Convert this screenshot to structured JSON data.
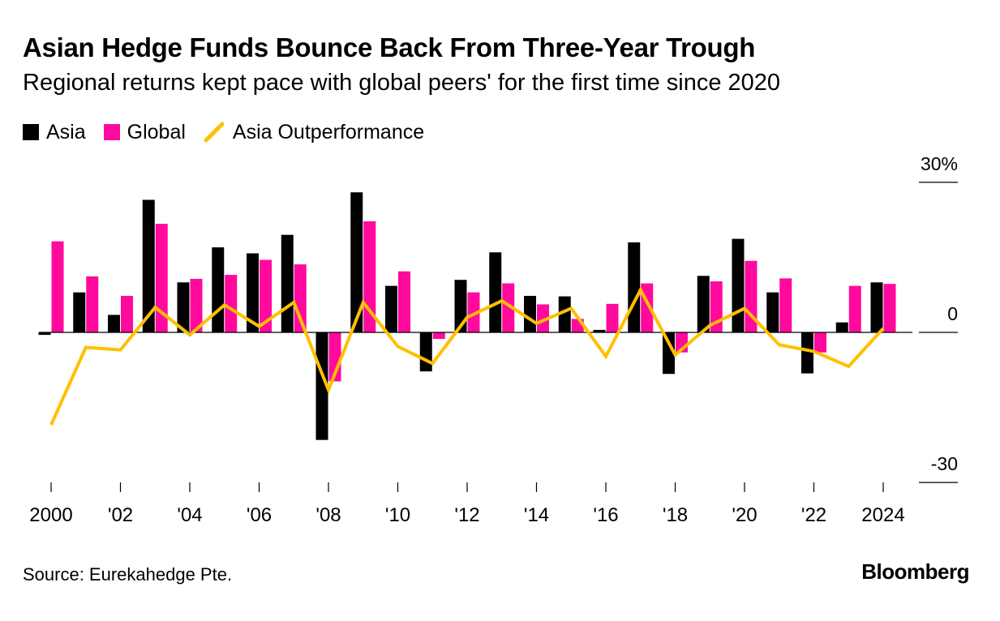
{
  "title": "Asian Hedge Funds Bounce Back From Three-Year Trough",
  "subtitle": "Regional returns kept pace with global peers' for the first time since 2020",
  "legend": {
    "asia": "Asia",
    "global": "Global",
    "outperformance": "Asia Outperformance"
  },
  "colors": {
    "asia": "#000000",
    "global": "#ff0a9c",
    "outperformance": "#ffc000"
  },
  "footer": {
    "source": "Source: Eurekahedge Pte.",
    "brand": "Bloomberg"
  },
  "chart_data": {
    "type": "bar",
    "x": [
      2000,
      2001,
      2002,
      2003,
      2004,
      2005,
      2006,
      2007,
      2008,
      2009,
      2010,
      2011,
      2012,
      2013,
      2014,
      2015,
      2016,
      2017,
      2018,
      2019,
      2020,
      2021,
      2022,
      2023,
      2024
    ],
    "series": [
      {
        "name": "Asia",
        "type": "bar",
        "values": [
          -0.5,
          8.0,
          3.5,
          26.5,
          10.0,
          17.0,
          15.8,
          19.5,
          -21.5,
          28.0,
          9.3,
          -7.8,
          10.5,
          16.0,
          7.3,
          7.2,
          0.5,
          18.0,
          -8.3,
          11.3,
          18.7,
          8.0,
          -8.2,
          2.0,
          10.0
        ]
      },
      {
        "name": "Global",
        "type": "bar",
        "values": [
          18.2,
          11.2,
          7.3,
          21.7,
          10.7,
          11.5,
          14.5,
          13.6,
          -9.8,
          22.2,
          12.2,
          -1.3,
          8.0,
          9.8,
          5.6,
          2.7,
          5.7,
          9.8,
          -4.0,
          10.2,
          14.3,
          10.8,
          -4.0,
          9.3,
          9.7
        ]
      },
      {
        "name": "Asia Outperformance",
        "type": "line",
        "values": [
          -18.5,
          -3.0,
          -3.5,
          5.0,
          -0.5,
          5.5,
          1.2,
          6.0,
          -11.5,
          6.0,
          -2.8,
          -6.2,
          3.0,
          6.3,
          1.8,
          4.8,
          -4.8,
          8.5,
          -4.5,
          1.4,
          4.8,
          -2.5,
          -3.8,
          -6.8,
          0.8
        ]
      }
    ],
    "yaxis": {
      "ticks": [
        30,
        0,
        -30
      ],
      "tick_labels": [
        "30%",
        "0",
        "-30"
      ],
      "ylim": [
        -30,
        30
      ]
    },
    "xaxis": {
      "tick_years": [
        2000,
        2002,
        2004,
        2006,
        2008,
        2010,
        2012,
        2014,
        2016,
        2018,
        2020,
        2022,
        2024
      ],
      "tick_labels": [
        "2000",
        "'02",
        "'04",
        "'06",
        "'08",
        "'10",
        "'12",
        "'14",
        "'16",
        "'18",
        "'20",
        "'22",
        "2024"
      ]
    },
    "legend_position": "top-left",
    "grid": false
  }
}
